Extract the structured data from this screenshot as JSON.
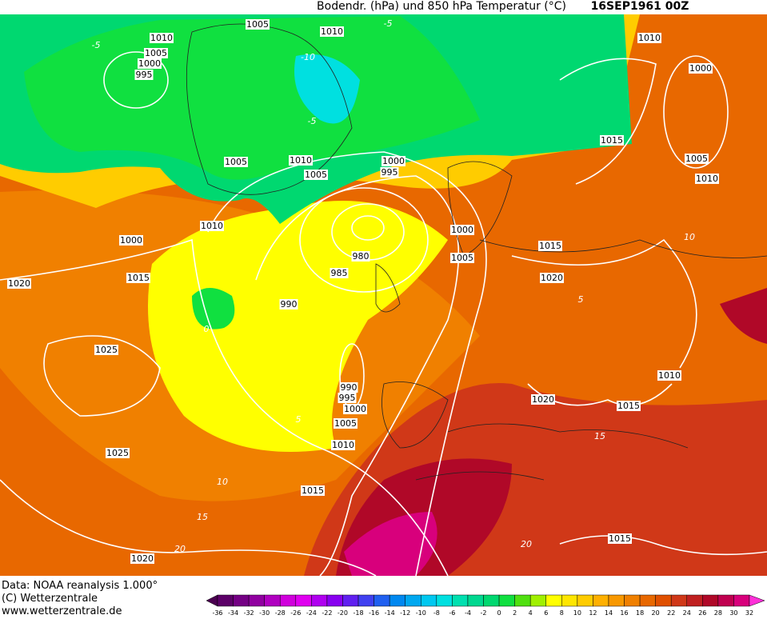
{
  "header": {
    "title": "Bodendr. (hPa) und 850 hPa Temperatur (°C)",
    "date": "16SEP1961 00Z"
  },
  "map": {
    "isobar_labels": [
      "1005",
      "1010",
      "1010",
      "1005",
      "1000",
      "995",
      "1010",
      "1000",
      "1015",
      "1005",
      "1010",
      "1010",
      "1005",
      "1005",
      "1000",
      "995",
      "1010",
      "1000",
      "1000",
      "1005",
      "1015",
      "1020",
      "980",
      "985",
      "990",
      "1020",
      "1015",
      "1025",
      "1025",
      "990",
      "995",
      "1000",
      "1005",
      "1010",
      "1015",
      "1020",
      "1010",
      "1015",
      "1015",
      "1020"
    ],
    "isotherm_labels": [
      "-5",
      "-10",
      "-5",
      "0",
      "-5",
      "5",
      "10",
      "15",
      "20",
      "15",
      "20",
      "10",
      "5"
    ]
  },
  "footer": {
    "lines": [
      "Data: NOAA reanalysis 1.000°",
      "(C) Wetterzentrale",
      "www.wetterzentrale.de"
    ]
  },
  "colorbar": {
    "ticks": [
      -36,
      -34,
      -32,
      -30,
      -28,
      -26,
      -24,
      -22,
      -20,
      -18,
      -16,
      -14,
      -12,
      -10,
      -8,
      -6,
      -4,
      -2,
      0,
      2,
      4,
      6,
      8,
      10,
      12,
      14,
      16,
      18,
      20,
      22,
      24,
      26,
      28,
      30,
      32
    ],
    "colors": [
      "#4a0050",
      "#5c0068",
      "#740084",
      "#9000a0",
      "#b000c0",
      "#d000dc",
      "#e000f0",
      "#b000f0",
      "#8800f0",
      "#6020f0",
      "#4040f0",
      "#2060f0",
      "#0088f0",
      "#00a8f0",
      "#00c8f0",
      "#00e0e0",
      "#00e0b0",
      "#00d890",
      "#00d870",
      "#10e040",
      "#50e010",
      "#a0f000",
      "#ffff00",
      "#ffe600",
      "#ffcc00",
      "#ffb000",
      "#f89800",
      "#f08000",
      "#e86800",
      "#e05000",
      "#d03818",
      "#c02020",
      "#b00828",
      "#c00050",
      "#d8007c",
      "#f000b0",
      "#ff30d8"
    ]
  }
}
